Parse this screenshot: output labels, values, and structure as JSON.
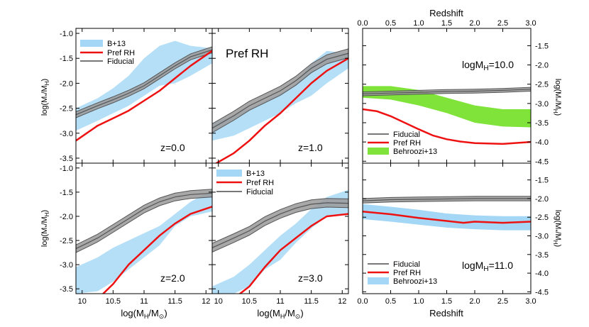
{
  "chart_data": [
    {
      "id": "smhm_z0",
      "type": "line",
      "annotation": "z=0.0",
      "title": "",
      "xlabel": "log(M_H/M_sun)",
      "ylabel": "log(M*/M_H)",
      "xlim": [
        9.9,
        12.1
      ],
      "ylim": [
        -3.6,
        -0.9
      ],
      "legend": [
        "B+13",
        "Pref RH",
        "Fiducial"
      ],
      "series": [
        {
          "name": "Pref RH",
          "x": [
            9.9,
            10.25,
            10.5,
            10.75,
            11.0,
            11.25,
            11.5,
            11.75,
            12.1
          ],
          "y": [
            -3.15,
            -2.85,
            -2.7,
            -2.55,
            -2.35,
            -2.15,
            -1.9,
            -1.65,
            -1.35
          ]
        },
        {
          "name": "Fiducial",
          "x": [
            9.9,
            10.25,
            10.5,
            10.75,
            11.0,
            11.25,
            11.5,
            11.75,
            12.1
          ],
          "y": [
            -2.63,
            -2.45,
            -2.33,
            -2.2,
            -2.05,
            -1.85,
            -1.65,
            -1.47,
            -1.33
          ],
          "halfwidth": 0.06
        },
        {
          "name": "B+13",
          "x": [
            9.9,
            10.25,
            10.5,
            10.75,
            11.0,
            11.25,
            11.5,
            11.75,
            12.1
          ],
          "lower": [
            -2.95,
            -2.75,
            -2.6,
            -2.45,
            -2.25,
            -2.05,
            -2.0,
            -1.85,
            -1.6
          ],
          "upper": [
            -2.5,
            -2.3,
            -2.1,
            -1.85,
            -1.5,
            -1.25,
            -1.15,
            -1.25,
            -1.3
          ]
        }
      ]
    },
    {
      "id": "smhm_z1",
      "type": "line",
      "annotation": "z=1.0",
      "title": "Pref RH",
      "xlabel": "",
      "ylabel": "",
      "xlim": [
        9.9,
        12.1
      ],
      "ylim": [
        -3.6,
        -0.9
      ],
      "legend": [],
      "series": [
        {
          "name": "Pref RH",
          "x": [
            9.9,
            10.25,
            10.5,
            10.75,
            11.0,
            11.25,
            11.5,
            11.75,
            12.1
          ],
          "y": [
            -3.65,
            -3.4,
            -3.15,
            -2.85,
            -2.6,
            -2.3,
            -2.0,
            -1.75,
            -1.5
          ]
        },
        {
          "name": "Fiducial",
          "x": [
            9.9,
            10.25,
            10.5,
            10.75,
            11.0,
            11.25,
            11.5,
            11.75,
            12.1
          ],
          "y": [
            -2.9,
            -2.65,
            -2.45,
            -2.3,
            -2.15,
            -1.95,
            -1.7,
            -1.52,
            -1.4
          ],
          "halfwidth": 0.09
        },
        {
          "name": "B+13",
          "x": [
            9.9,
            10.25,
            10.5,
            10.75,
            11.0,
            11.25,
            11.5,
            11.75,
            12.1
          ],
          "lower": [
            -3.15,
            -3.05,
            -2.9,
            -2.75,
            -2.6,
            -2.4,
            -2.25,
            -2.0,
            -1.7
          ],
          "upper": [
            -2.8,
            -2.65,
            -2.5,
            -2.35,
            -2.2,
            -2.0,
            -1.6,
            -1.35,
            -1.4
          ]
        }
      ]
    },
    {
      "id": "smhm_z2",
      "type": "line",
      "annotation": "z=2.0",
      "title": "",
      "xlabel": "log(M_H/M_sun)",
      "ylabel": "log(M*/M_H)",
      "xlim": [
        9.9,
        12.1
      ],
      "ylim": [
        -3.6,
        -0.9
      ],
      "legend": [],
      "series": [
        {
          "name": "Pref RH",
          "x": [
            10.3,
            10.5,
            10.75,
            11.0,
            11.25,
            11.5,
            11.75,
            12.1
          ],
          "y": [
            -3.65,
            -3.4,
            -3.0,
            -2.7,
            -2.4,
            -2.15,
            -1.95,
            -1.8
          ]
        },
        {
          "name": "Fiducial",
          "x": [
            9.9,
            10.25,
            10.5,
            10.75,
            11.0,
            11.25,
            11.5,
            11.75,
            12.1
          ],
          "y": [
            -2.67,
            -2.45,
            -2.25,
            -2.05,
            -1.85,
            -1.7,
            -1.6,
            -1.55,
            -1.52
          ],
          "halfwidth": 0.08
        },
        {
          "name": "B+13",
          "x": [
            9.9,
            10.25,
            10.5,
            10.75,
            11.0,
            11.25,
            11.5,
            11.75,
            12.1
          ],
          "lower": [
            -3.6,
            -3.55,
            -3.35,
            -3.1,
            -2.85,
            -2.6,
            -2.2,
            -2.0,
            -1.9
          ],
          "upper": [
            -3.05,
            -2.85,
            -2.65,
            -2.5,
            -2.35,
            -2.2,
            -1.95,
            -1.7,
            -1.45
          ]
        }
      ]
    },
    {
      "id": "smhm_z3",
      "type": "line",
      "annotation": "z=3.0",
      "title": "",
      "xlabel": "log(M_H/M_sun)",
      "ylabel": "",
      "xlim": [
        9.9,
        12.1
      ],
      "ylim": [
        -3.6,
        -0.9
      ],
      "legend": [
        "B+13",
        "Pref RH",
        "Fiducial"
      ],
      "series": [
        {
          "name": "Pref RH",
          "x": [
            10.3,
            10.5,
            10.75,
            11.0,
            11.25,
            11.5,
            11.75,
            12.1
          ],
          "y": [
            -3.65,
            -3.45,
            -3.05,
            -2.7,
            -2.45,
            -2.2,
            -2.0,
            -1.95
          ]
        },
        {
          "name": "Fiducial",
          "x": [
            9.9,
            10.25,
            10.5,
            10.75,
            11.0,
            11.25,
            11.5,
            11.75,
            12.1
          ],
          "y": [
            -2.65,
            -2.45,
            -2.3,
            -2.1,
            -1.95,
            -1.83,
            -1.75,
            -1.72,
            -1.73
          ],
          "halfwidth": 0.09
        },
        {
          "name": "B+13",
          "x": [
            9.9,
            10.25,
            10.5,
            10.75,
            11.0,
            11.25,
            11.5,
            11.75,
            12.1
          ],
          "lower": [
            -3.6,
            -3.6,
            -3.45,
            -3.1,
            -2.9,
            -2.55,
            -2.25,
            -2.0,
            -1.95
          ],
          "upper": [
            -3.45,
            -3.25,
            -3.0,
            -2.7,
            -2.4,
            -2.15,
            -1.85,
            -1.6,
            -1.45
          ]
        }
      ]
    },
    {
      "id": "evol_10",
      "type": "line",
      "annotation": "logM_H=10.0",
      "title": "Redshift",
      "xlabel": "",
      "ylabel": "log(M*/M_H)",
      "xlim": [
        0.0,
        3.0
      ],
      "ylim": [
        -4.55,
        -1.05
      ],
      "legend": [
        "Fiducial",
        "Pref RH",
        "Behroozi+13"
      ],
      "series": [
        {
          "name": "Fiducial",
          "x": [
            0.0,
            0.5,
            1.0,
            1.5,
            2.0,
            2.5,
            3.0
          ],
          "y": [
            -2.75,
            -2.73,
            -2.71,
            -2.69,
            -2.68,
            -2.66,
            -2.63
          ],
          "halfwidth": 0.05
        },
        {
          "name": "Pref RH",
          "x": [
            0.0,
            0.25,
            0.5,
            0.75,
            1.0,
            1.25,
            1.5,
            1.75,
            2.0,
            2.5,
            3.0
          ],
          "y": [
            -3.15,
            -3.2,
            -3.33,
            -3.5,
            -3.67,
            -3.83,
            -3.93,
            -3.99,
            -4.03,
            -4.05,
            -4.0
          ]
        },
        {
          "name": "Behroozi+13",
          "x": [
            0.0,
            0.5,
            1.0,
            1.5,
            2.0,
            2.5,
            3.0
          ],
          "lower": [
            -2.85,
            -2.9,
            -3.05,
            -3.25,
            -3.5,
            -3.6,
            -3.62
          ],
          "upper": [
            -2.55,
            -2.55,
            -2.65,
            -2.85,
            -3.05,
            -3.15,
            -3.15
          ]
        }
      ]
    },
    {
      "id": "evol_11",
      "type": "line",
      "annotation": "logM_H=11.0",
      "title": "",
      "xlabel": "Redshift",
      "ylabel": "log(M*/M_H)",
      "xlim": [
        0.0,
        3.0
      ],
      "ylim": [
        -4.55,
        -1.05
      ],
      "legend": [
        "Fiducial",
        "Pref RH",
        "Behroozi+13"
      ],
      "series": [
        {
          "name": "Fiducial",
          "x": [
            0.0,
            0.5,
            1.0,
            1.5,
            2.0,
            2.5,
            3.0
          ],
          "y": [
            -2.06,
            -2.03,
            -2.02,
            -2.01,
            -2.0,
            -2.0,
            -2.0
          ],
          "halfwidth": 0.06
        },
        {
          "name": "Pref RH",
          "x": [
            0.0,
            0.5,
            1.0,
            1.5,
            1.8,
            2.0,
            2.5,
            3.0
          ],
          "y": [
            -2.35,
            -2.42,
            -2.52,
            -2.6,
            -2.65,
            -2.62,
            -2.65,
            -2.62
          ]
        },
        {
          "name": "Behroozi+13",
          "x": [
            0.0,
            0.5,
            1.0,
            1.5,
            2.0,
            2.5,
            3.0
          ],
          "lower": [
            -2.55,
            -2.62,
            -2.7,
            -2.78,
            -2.82,
            -2.85,
            -2.85
          ],
          "upper": [
            -2.15,
            -2.22,
            -2.3,
            -2.4,
            -2.45,
            -2.47,
            -2.47
          ]
        }
      ]
    }
  ],
  "labels": {
    "xlabel_mass": "log(M",
    "xlabel_mass_sub": "H",
    "xlabel_mass_tail": "/M",
    "xlabel_mass_sun": "⊙",
    "ylabel_left": "log(M",
    "ylabel_left_sub1": "*",
    "ylabel_left_mid": "/M",
    "ylabel_left_sub2": "H",
    "ylabel_left_tail": ")",
    "ylabel_right_a": "log(M",
    "ylabel_right_b": "*",
    "ylabel_right_c": "/M",
    "ylabel_right_d": "H",
    "ylabel_right_e": ")",
    "redshift_top": "Redshift",
    "redshift_bottom": "Redshift",
    "title_pref": "Pref RH",
    "ann_z0": "z=0.0",
    "ann_z1": "z=1.0",
    "ann_z2": "z=2.0",
    "ann_z3": "z=3.0",
    "ann_m10_a": "logM",
    "ann_m10_b": "H",
    "ann_m10_c": "=10.0",
    "ann_m11_a": "logM",
    "ann_m11_b": "H",
    "ann_m11_c": "=11.0",
    "leg_b13": "B+13",
    "leg_pref": "Pref RH",
    "leg_fid": "Fiducial",
    "leg_beh": "Behroozi+13"
  },
  "colors": {
    "pref": "#ee1111",
    "fiducial_line": "#555555",
    "fiducial_band": "#999999",
    "b13_band": "#a3d7f5",
    "behroozi_green": "#7fe339",
    "behroozi_blue": "#a3d7f5"
  }
}
